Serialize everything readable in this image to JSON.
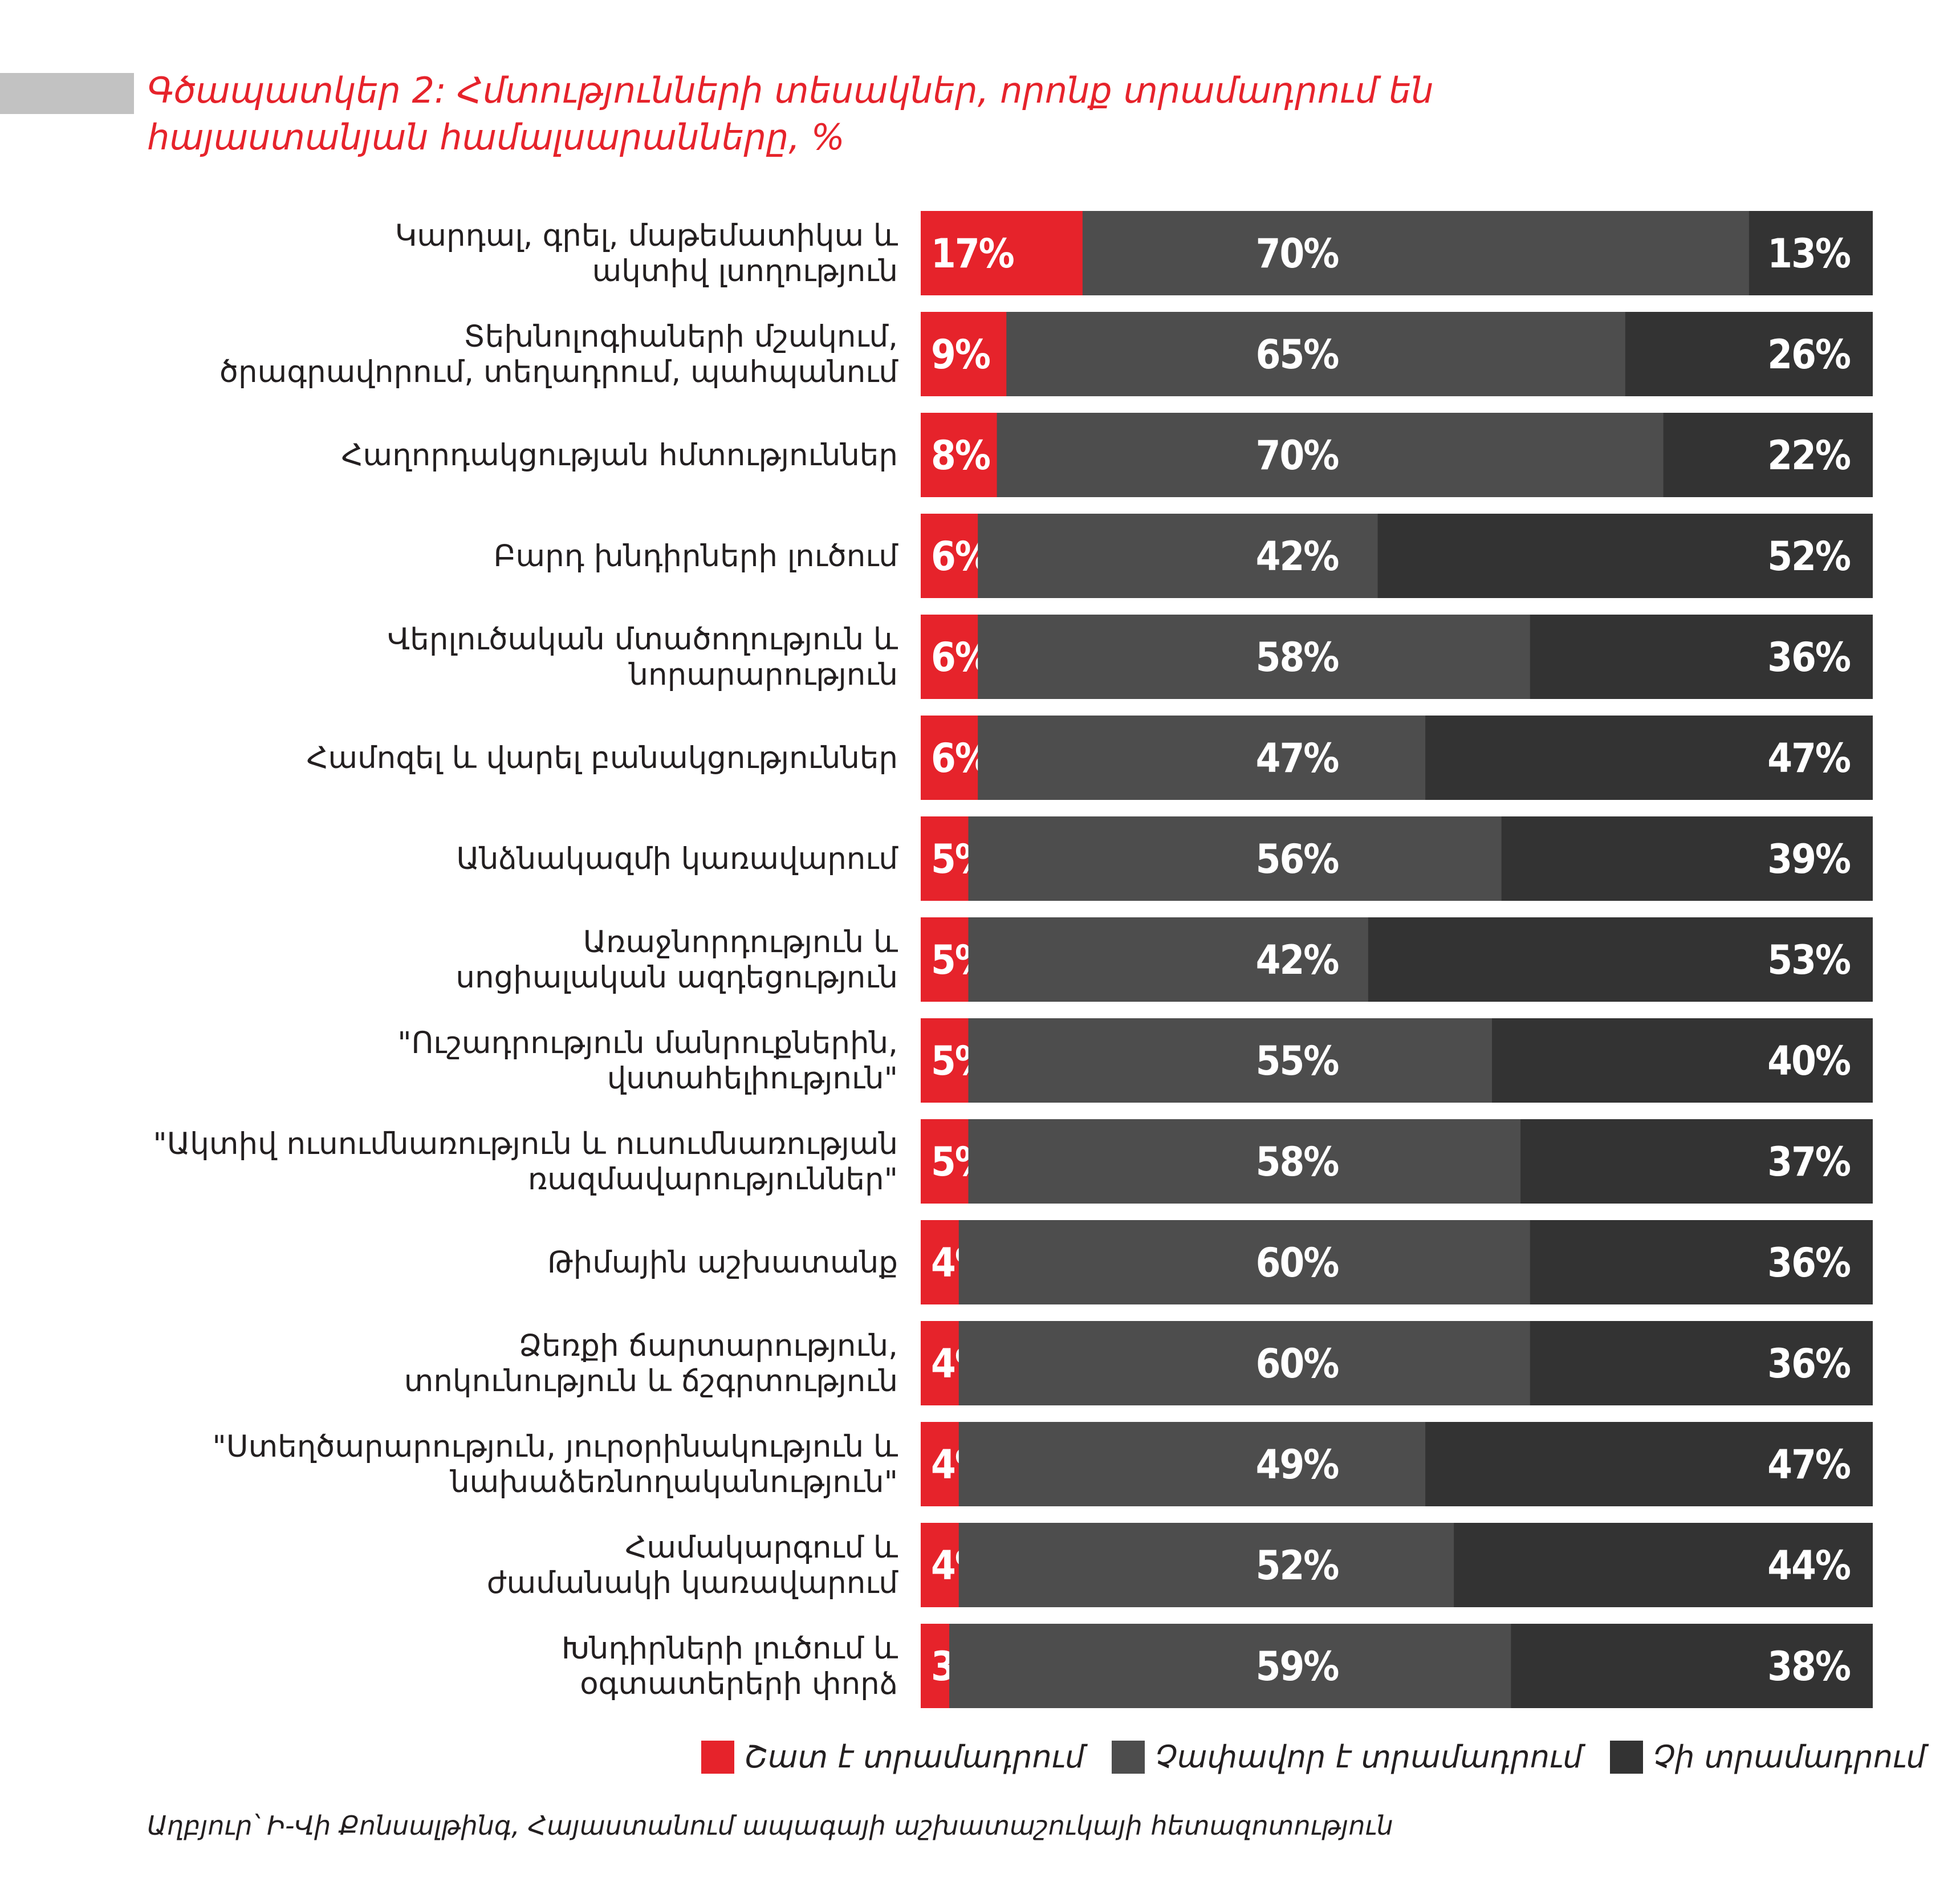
{
  "title": {
    "line1": "Գծապատկեր 2: Հմտությունների տեսակներ, որոնք տրամադրում են",
    "line2": "հայաստանյան համալսարանները, %"
  },
  "colors": {
    "very": "#e6232b",
    "moderate": "#4d4d4d",
    "none": "#333333"
  },
  "chart_data": {
    "type": "bar",
    "orientation": "horizontal",
    "stacked": true,
    "unit": "%",
    "categories": [
      [
        "Կարդալ, գրել, մաթեմատիկա և",
        "ակտիվ լսողություն"
      ],
      [
        "Տեխնոլոգիաների մշակում,",
        "ծրագրավորում, տեղադրում, պահպանում"
      ],
      [
        "Հաղորդակցության հմտություններ"
      ],
      [
        "Բարդ խնդիրների լուծում"
      ],
      [
        "Վերլուծական մտածողություն և",
        "նորարարություն"
      ],
      [
        "Համոզել և վարել բանակցություններ"
      ],
      [
        "Անձնակազմի կառավարում"
      ],
      [
        "Առաջնորդություն և",
        "սոցիալական ազդեցություն"
      ],
      [
        "\"Ուշադրություն մանրուքներին,",
        "վստահելիություն\""
      ],
      [
        "\"Ակտիվ ուսումնառություն և ուսումնառության",
        "ռազմավարություններ\""
      ],
      [
        "Թիմային աշխատանք"
      ],
      [
        "Ձեռքի ճարտարություն,",
        "տոկունություն և ճշգրտություն"
      ],
      [
        "\"Ստեղծարարություն, յուրօրինակություն և",
        "նախաձեռնողականություն\""
      ],
      [
        "Համակարգում և",
        "ժամանակի կառավարում"
      ],
      [
        "Խնդիրների լուծում և",
        "օգտատերերի փորձ"
      ]
    ],
    "series": [
      {
        "name": "Շատ է տրամադրում",
        "key": "very",
        "values": [
          17,
          9,
          8,
          6,
          6,
          6,
          5,
          5,
          5,
          5,
          4,
          4,
          4,
          4,
          3
        ]
      },
      {
        "name": "Չափավոր է տրամադրում",
        "key": "moderate",
        "values": [
          70,
          65,
          70,
          42,
          58,
          47,
          56,
          42,
          55,
          58,
          60,
          60,
          49,
          52,
          59
        ]
      },
      {
        "name": "Չի տրամադրում",
        "key": "none",
        "values": [
          13,
          26,
          22,
          52,
          36,
          47,
          39,
          53,
          40,
          37,
          36,
          36,
          47,
          44,
          38
        ]
      }
    ],
    "xlim": [
      0,
      100
    ],
    "legend_position": "bottom-right"
  },
  "source": "Աղբյուր՝ Ի-Վի Քոնսալթինգ, Հայաստանում ապագայի աշխատաշուկայի հետազոտություն"
}
